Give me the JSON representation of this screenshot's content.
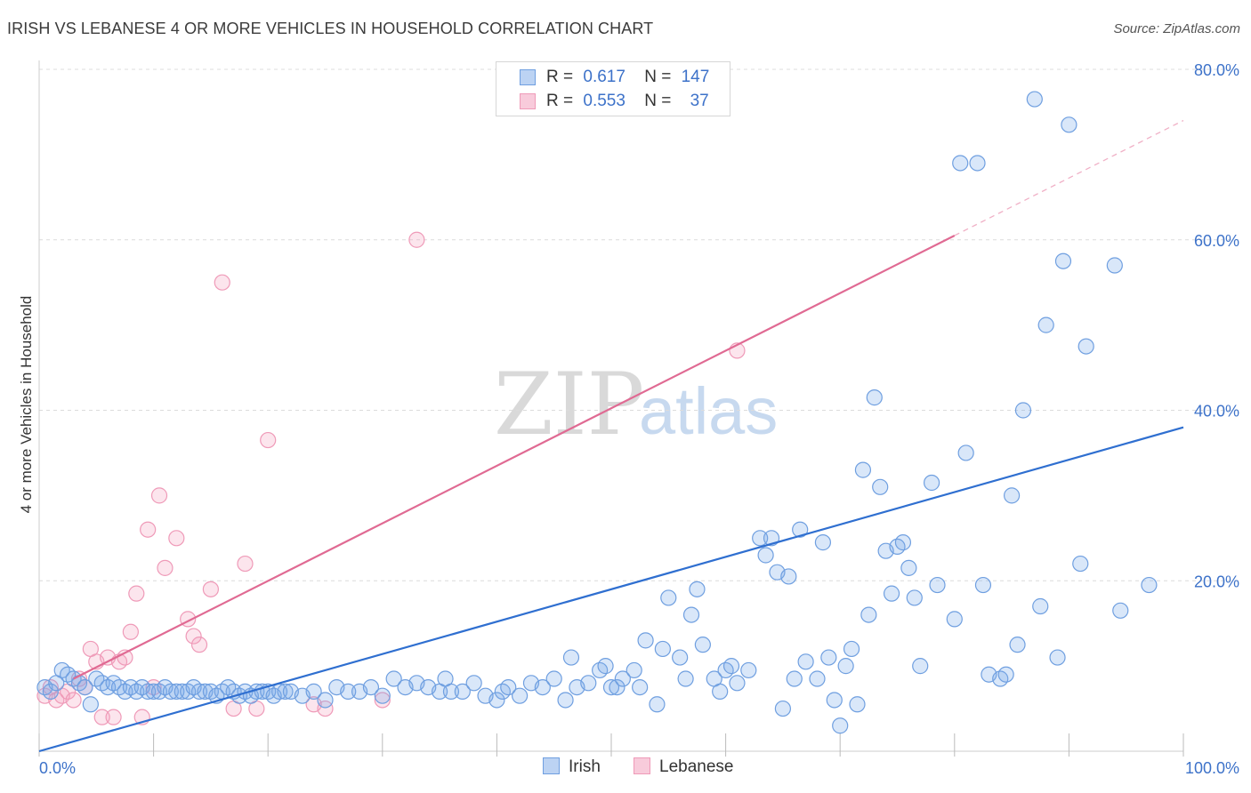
{
  "title": "IRISH VS LEBANESE 4 OR MORE VEHICLES IN HOUSEHOLD CORRELATION CHART",
  "source": "Source: ZipAtlas.com",
  "legend": {
    "rows": [
      {
        "r_label": "R =",
        "r_value": "0.617",
        "n_label": "N =",
        "n_value": "147"
      },
      {
        "r_label": "R =",
        "r_value": "0.553",
        "n_label": "N =",
        "n_value": "37"
      }
    ]
  },
  "bottom_legend": [
    "Irish",
    "Lebanese"
  ],
  "watermark": {
    "zip": "ZIP",
    "atlas": "atlas"
  },
  "colors": {
    "irish_fill": "rgba(120,170,235,0.28)",
    "irish_stroke": "#6f9fe0",
    "irish_line": "#2f6fd0",
    "lebanese_fill": "rgba(245,160,190,0.28)",
    "lebanese_stroke": "#ef9ab8",
    "lebanese_line": "#e06a93",
    "tick_text": "#3d72c9"
  },
  "chart_data": {
    "type": "scatter",
    "xlabel": "",
    "ylabel": "4 or more Vehicles in Household",
    "xlim": [
      0,
      100
    ],
    "ylim": [
      0,
      80
    ],
    "x_tick_labels": [
      "0.0%",
      "100.0%"
    ],
    "y_ticks": [
      20,
      40,
      60,
      80
    ],
    "y_tick_labels": [
      "20.0%",
      "40.0%",
      "60.0%",
      "80.0%"
    ],
    "grid": "dashed horizontal",
    "series": [
      {
        "name": "Irish",
        "trendline": {
          "x0": 0,
          "y0": 0,
          "x1": 100,
          "y1": 38
        },
        "points": [
          [
            0.5,
            7.5
          ],
          [
            1,
            7
          ],
          [
            1.5,
            8
          ],
          [
            2,
            9.5
          ],
          [
            2.5,
            9
          ],
          [
            3,
            8.5
          ],
          [
            3.5,
            8
          ],
          [
            4,
            7.5
          ],
          [
            4.5,
            5.5
          ],
          [
            5,
            8.5
          ],
          [
            5.5,
            8
          ],
          [
            6,
            7.5
          ],
          [
            6.5,
            8
          ],
          [
            7,
            7.5
          ],
          [
            7.5,
            7
          ],
          [
            8,
            7.5
          ],
          [
            8.5,
            7
          ],
          [
            9,
            7.5
          ],
          [
            9.5,
            7
          ],
          [
            10,
            7
          ],
          [
            10.5,
            7
          ],
          [
            11,
            7.5
          ],
          [
            11.5,
            7
          ],
          [
            12,
            7
          ],
          [
            12.5,
            7
          ],
          [
            13,
            7
          ],
          [
            13.5,
            7.5
          ],
          [
            14,
            7
          ],
          [
            14.5,
            7
          ],
          [
            15,
            7
          ],
          [
            15.5,
            6.5
          ],
          [
            16,
            7
          ],
          [
            16.5,
            7.5
          ],
          [
            17,
            7
          ],
          [
            17.5,
            6.5
          ],
          [
            18,
            7
          ],
          [
            18.5,
            6.5
          ],
          [
            19,
            7
          ],
          [
            19.5,
            7
          ],
          [
            20,
            7
          ],
          [
            20.5,
            6.5
          ],
          [
            21,
            7
          ],
          [
            21.5,
            7
          ],
          [
            22,
            7
          ],
          [
            23,
            6.5
          ],
          [
            24,
            7
          ],
          [
            25,
            6
          ],
          [
            26,
            7.5
          ],
          [
            27,
            7
          ],
          [
            28,
            7
          ],
          [
            29,
            7.5
          ],
          [
            30,
            6.5
          ],
          [
            31,
            8.5
          ],
          [
            32,
            7.5
          ],
          [
            33,
            8
          ],
          [
            34,
            7.5
          ],
          [
            35,
            7
          ],
          [
            35.5,
            8.5
          ],
          [
            36,
            7
          ],
          [
            37,
            7
          ],
          [
            38,
            8
          ],
          [
            39,
            6.5
          ],
          [
            40,
            6
          ],
          [
            40.5,
            7
          ],
          [
            41,
            7.5
          ],
          [
            42,
            6.5
          ],
          [
            43,
            8
          ],
          [
            44,
            7.5
          ],
          [
            45,
            8.5
          ],
          [
            46,
            6
          ],
          [
            46.5,
            11
          ],
          [
            47,
            7.5
          ],
          [
            48,
            8
          ],
          [
            49,
            9.5
          ],
          [
            49.5,
            10
          ],
          [
            50,
            7.5
          ],
          [
            50.5,
            7.5
          ],
          [
            51,
            8.5
          ],
          [
            52,
            9.5
          ],
          [
            52.5,
            7.5
          ],
          [
            53,
            13
          ],
          [
            54,
            5.5
          ],
          [
            54.5,
            12
          ],
          [
            55,
            18
          ],
          [
            56,
            11
          ],
          [
            56.5,
            8.5
          ],
          [
            57,
            16
          ],
          [
            57.5,
            19
          ],
          [
            58,
            12.5
          ],
          [
            59,
            8.5
          ],
          [
            59.5,
            7
          ],
          [
            60,
            9.5
          ],
          [
            60.5,
            10
          ],
          [
            61,
            8
          ],
          [
            62,
            9.5
          ],
          [
            63,
            25
          ],
          [
            63.5,
            23
          ],
          [
            64,
            25
          ],
          [
            64.5,
            21
          ],
          [
            65,
            5
          ],
          [
            65.5,
            20.5
          ],
          [
            66,
            8.5
          ],
          [
            66.5,
            26
          ],
          [
            67,
            10.5
          ],
          [
            68,
            8.5
          ],
          [
            68.5,
            24.5
          ],
          [
            69,
            11
          ],
          [
            69.5,
            6
          ],
          [
            70,
            3
          ],
          [
            70.5,
            10
          ],
          [
            71,
            12
          ],
          [
            71.5,
            5.5
          ],
          [
            72,
            33
          ],
          [
            72.5,
            16
          ],
          [
            73,
            41.5
          ],
          [
            73.5,
            31
          ],
          [
            74,
            23.5
          ],
          [
            74.5,
            18.5
          ],
          [
            75,
            24
          ],
          [
            75.5,
            24.5
          ],
          [
            76,
            21.5
          ],
          [
            76.5,
            18
          ],
          [
            77,
            10
          ],
          [
            78,
            31.5
          ],
          [
            78.5,
            19.5
          ],
          [
            80,
            15.5
          ],
          [
            80.5,
            69
          ],
          [
            81,
            35
          ],
          [
            82,
            69
          ],
          [
            82.5,
            19.5
          ],
          [
            83,
            9
          ],
          [
            84,
            8.5
          ],
          [
            84.5,
            9
          ],
          [
            85,
            30
          ],
          [
            85.5,
            12.5
          ],
          [
            86,
            40
          ],
          [
            87,
            76.5
          ],
          [
            87.5,
            17
          ],
          [
            88,
            50
          ],
          [
            89,
            11
          ],
          [
            89.5,
            57.5
          ],
          [
            90,
            73.5
          ],
          [
            91,
            22
          ],
          [
            91.5,
            47.5
          ],
          [
            94,
            57
          ],
          [
            94.5,
            16.5
          ],
          [
            97,
            19.5
          ]
        ]
      },
      {
        "name": "Lebanese",
        "trendline": {
          "x0": 3,
          "y0": 8.5,
          "x1": 80,
          "y1": 60.5,
          "dashed_to_x": 100,
          "dashed_to_y": 74
        },
        "points": [
          [
            0.5,
            6.5
          ],
          [
            1,
            7.5
          ],
          [
            1.5,
            6
          ],
          [
            2,
            6.5
          ],
          [
            2.5,
            7
          ],
          [
            3,
            6
          ],
          [
            3.5,
            8.5
          ],
          [
            4,
            7.5
          ],
          [
            4.5,
            12
          ],
          [
            5,
            10.5
          ],
          [
            5.5,
            4
          ],
          [
            6,
            11
          ],
          [
            6.5,
            4
          ],
          [
            7,
            10.5
          ],
          [
            7.5,
            11
          ],
          [
            8,
            14
          ],
          [
            8.5,
            18.5
          ],
          [
            9,
            4
          ],
          [
            9.5,
            26
          ],
          [
            10,
            7.5
          ],
          [
            10.5,
            30
          ],
          [
            11,
            21.5
          ],
          [
            12,
            25
          ],
          [
            13,
            15.5
          ],
          [
            13.5,
            13.5
          ],
          [
            14,
            12.5
          ],
          [
            15,
            19
          ],
          [
            16,
            55
          ],
          [
            17,
            5
          ],
          [
            18,
            22
          ],
          [
            19,
            5
          ],
          [
            20,
            36.5
          ],
          [
            24,
            5.5
          ],
          [
            25,
            5
          ],
          [
            30,
            6
          ],
          [
            33,
            60
          ],
          [
            61,
            47
          ]
        ]
      }
    ]
  }
}
